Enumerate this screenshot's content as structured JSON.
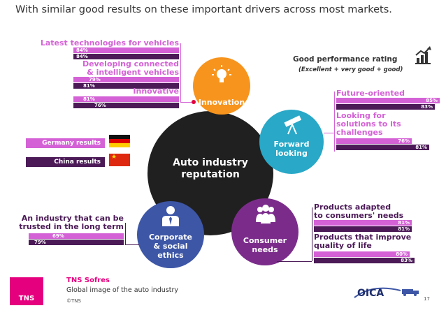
{
  "headline": "With similar good results on these important drivers across most markets.",
  "rating": {
    "title": "Good performance rating",
    "subtitle": "(Excellent + very good + good)",
    "icon": "bar-chart-rising-icon"
  },
  "legend": {
    "germany": "Germany results",
    "china": "China results"
  },
  "center": {
    "line1": "Auto industry",
    "line2": "reputation"
  },
  "nodes": {
    "innovation": "Innovation",
    "forward": [
      "Forward",
      "looking"
    ],
    "consumer": [
      "Consumer",
      "needs"
    ],
    "corporate": [
      "Corporate",
      "& social",
      "ethics"
    ]
  },
  "innovation_items": [
    {
      "label": [
        "Latest technologies for vehicles"
      ],
      "germany": "84%",
      "china": "84%"
    },
    {
      "label": [
        "Developing connected",
        "& intelligent vehicles"
      ],
      "germany": "79%",
      "china": "81%"
    },
    {
      "label": [
        "Innovative"
      ],
      "germany": "81%",
      "china": "76%"
    }
  ],
  "forward_items": [
    {
      "label": [
        "Future-oriented"
      ],
      "germany": "85%",
      "china": "83%"
    },
    {
      "label": [
        "Looking for",
        "solutions to its",
        "challenges"
      ],
      "germany": "76%",
      "china": "81%"
    }
  ],
  "consumer_items": [
    {
      "label": [
        "Products adapted",
        "to consumers' needs"
      ],
      "germany": "81%",
      "china": "81%"
    },
    {
      "label": [
        "Products that improve",
        "quality of life"
      ],
      "germany": "80%",
      "china": "83%"
    }
  ],
  "corporate_items": [
    {
      "label": [
        "An industry that can be",
        "trusted in the long term"
      ],
      "germany": "69%",
      "china": "79%"
    }
  ],
  "footer": {
    "brand": "TNS Sofres",
    "logo": "TNS",
    "caption": "Global image of the auto industry",
    "copyright": "©TNS",
    "partner": "OICA",
    "page": "17"
  },
  "colors": {
    "germany": "#d462d6",
    "china": "#4b1a57",
    "innovation": "#f7941d",
    "forward": "#29a8c7",
    "consumer": "#7b2c8b",
    "corporate": "#3d56a6",
    "center": "#202020",
    "tns": "#e5007e"
  }
}
